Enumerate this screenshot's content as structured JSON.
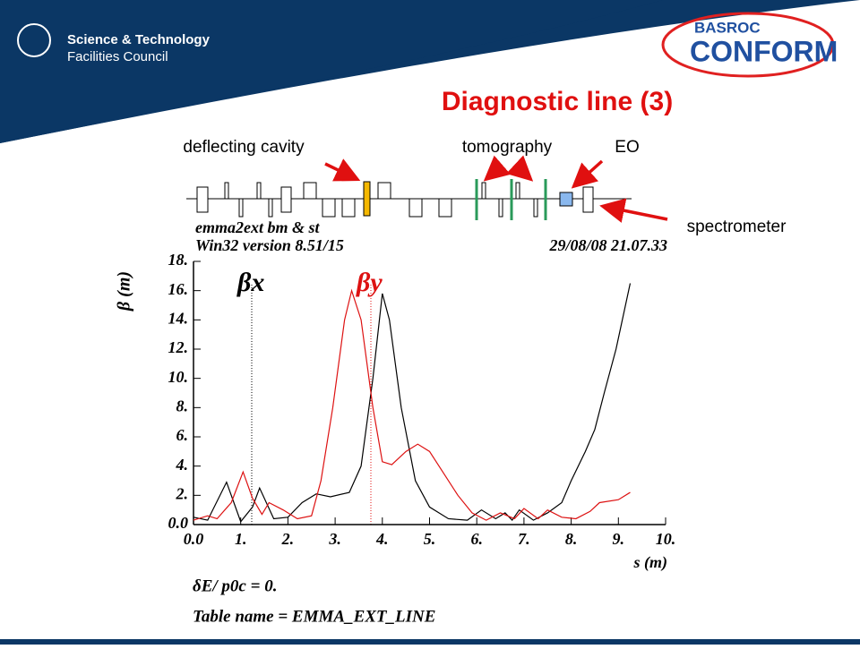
{
  "header": {
    "logo_left": [
      "Science & Technology",
      "Facilities Council"
    ],
    "logo_right": [
      "BASROC",
      "CONFORM"
    ],
    "title": "Diagnostic line (3)"
  },
  "lattice_labels": {
    "deflecting": "deflecting cavity",
    "tomography": "tomography",
    "eo": "EO",
    "spectrometer": "spectrometer"
  },
  "chart_data": {
    "type": "line",
    "header_left": [
      "emma2ext bm & st",
      "Win32 version 8.51/15"
    ],
    "header_right": "29/08/08  21.07.33",
    "y_label": "β (m)",
    "x_label": "s (m)",
    "footer": [
      "δE/ p0c  =  0.",
      "Table name = EMMA_EXT_LINE"
    ],
    "xlim": [
      0,
      10
    ],
    "ylim": [
      0,
      18
    ],
    "xticks": [
      {
        "value": 0,
        "label": "0.0"
      },
      {
        "value": 1,
        "label": "1."
      },
      {
        "value": 2,
        "label": "2."
      },
      {
        "value": 3,
        "label": "3."
      },
      {
        "value": 4,
        "label": "4."
      },
      {
        "value": 5,
        "label": "5."
      },
      {
        "value": 6,
        "label": "6."
      },
      {
        "value": 7,
        "label": "7."
      },
      {
        "value": 8,
        "label": "8."
      },
      {
        "value": 9,
        "label": "9."
      },
      {
        "value": 10,
        "label": "10."
      }
    ],
    "yticks": [
      {
        "value": 0,
        "label": "0.0"
      },
      {
        "value": 2,
        "label": "2."
      },
      {
        "value": 4,
        "label": "4."
      },
      {
        "value": 6,
        "label": "6."
      },
      {
        "value": 8,
        "label": "8."
      },
      {
        "value": 10,
        "label": "10."
      },
      {
        "value": 12,
        "label": "12."
      },
      {
        "value": 14,
        "label": "14."
      },
      {
        "value": 16,
        "label": "16."
      },
      {
        "value": 18,
        "label": "18."
      }
    ],
    "series": [
      {
        "name": "βx",
        "color": "#000000",
        "x": [
          0,
          0.3,
          0.7,
          1.0,
          1.25,
          1.4,
          1.7,
          2.0,
          2.3,
          2.6,
          2.9,
          3.3,
          3.55,
          3.8,
          4.0,
          4.15,
          4.4,
          4.7,
          5.0,
          5.4,
          5.8,
          6.1,
          6.4,
          6.6,
          6.75,
          6.9,
          7.2,
          7.5,
          7.8,
          8.0,
          8.3,
          8.5,
          8.7,
          8.95,
          9.25
        ],
        "values": [
          0.5,
          0.3,
          2.9,
          0.2,
          1.2,
          2.5,
          0.4,
          0.5,
          1.5,
          2.1,
          1.9,
          2.2,
          4,
          10,
          15.8,
          14,
          8,
          3,
          1.2,
          0.4,
          0.3,
          1.0,
          0.4,
          0.8,
          0.3,
          1.0,
          0.3,
          0.8,
          1.5,
          3,
          5,
          6.5,
          9,
          12,
          16.5
        ]
      },
      {
        "name": "βy",
        "color": "#dd1111",
        "x": [
          0,
          0.3,
          0.5,
          0.8,
          1.05,
          1.25,
          1.45,
          1.6,
          1.9,
          2.2,
          2.5,
          2.7,
          2.95,
          3.2,
          3.35,
          3.55,
          3.8,
          4.0,
          4.2,
          4.5,
          4.75,
          5.0,
          5.3,
          5.6,
          5.9,
          6.2,
          6.5,
          6.8,
          7.0,
          7.3,
          7.5,
          7.8,
          8.1,
          8.4,
          8.6,
          9.0,
          9.25
        ],
        "values": [
          0.3,
          0.6,
          0.4,
          1.5,
          3.6,
          1.8,
          0.7,
          1.5,
          1.0,
          0.4,
          0.6,
          3,
          8,
          14,
          16,
          14,
          8,
          4.3,
          4.1,
          5,
          5.5,
          5,
          3.5,
          2,
          0.8,
          0.3,
          0.8,
          0.4,
          1.1,
          0.4,
          1.0,
          0.5,
          0.4,
          0.9,
          1.5,
          1.7,
          2.2
        ]
      }
    ]
  }
}
